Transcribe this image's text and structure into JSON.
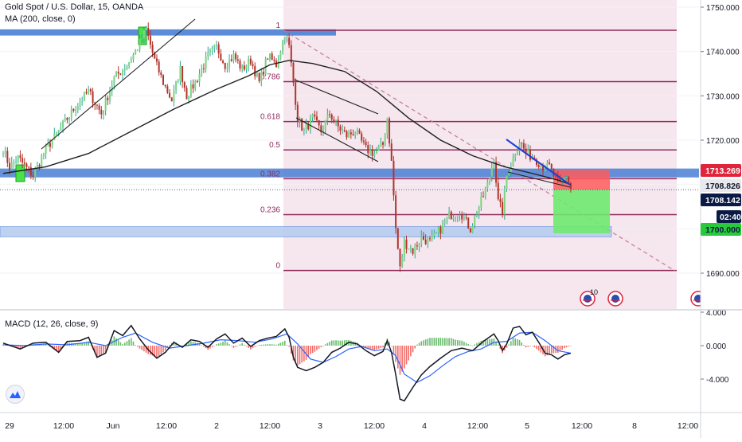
{
  "colors": {
    "candle_up": "#26a69a",
    "candle_up_fill": "#7ed37f",
    "candle_down": "#b0342c",
    "ma_line": "#1f1f1f",
    "fib_line": "#8e2a5c",
    "fib_text": "#8e2a5c",
    "fib_bg": "#f6e6ee",
    "zone_blue": "#4a7fd4",
    "zone_blue_light": "#b7cdf0",
    "trend_blue": "#1e3fd6",
    "dashed_trend": "#c07a96",
    "stop_red": "#ff5a5a",
    "target_green": "#6ee96e",
    "macd_line": "#2962ff",
    "signal_line": "#131722",
    "hist_up": "#4caf50",
    "hist_down": "#ef5350",
    "price_red_tag": "#e0243b",
    "price_navy_tag": "#0b1a44",
    "price_green_tag": "#28c93a",
    "price_gray_tag": "#e7e9ee"
  },
  "legend": {
    "symbol": "Gold Spot / U.S. Dollar, 15, OANDA",
    "ma": "MA (200, close, 0)",
    "macd": "MACD (12, 26, close, 9)"
  },
  "chart_data": [
    {
      "type": "candlestick",
      "title": "Gold Spot / U.S. Dollar, 15, OANDA",
      "ylim": [
        1688,
        1752
      ],
      "y_ticks": [
        1690,
        1700,
        1710,
        1720,
        1730,
        1740,
        1750
      ],
      "y_tick_labels": [
        "1690.000",
        "1700.000",
        "1710.000",
        "1720.000",
        "1730.000",
        "1740.000",
        "1750.000"
      ],
      "x_ticks": [
        "29",
        "12:00",
        "Jun",
        "12:00",
        "2",
        "12:00",
        "3",
        "12:00",
        "4",
        "12:00",
        "5",
        "12:00",
        "8",
        "12:00"
      ],
      "anchors": [
        [
          0,
          1718.0
        ],
        [
          3,
          1714.0
        ],
        [
          7,
          1716.0
        ],
        [
          14,
          1712.0
        ],
        [
          20,
          1718.0
        ],
        [
          26,
          1722.0
        ],
        [
          33,
          1727.0
        ],
        [
          40,
          1731.0
        ],
        [
          46,
          1726.0
        ],
        [
          52,
          1734.0
        ],
        [
          58,
          1737.0
        ],
        [
          62,
          1740.0
        ],
        [
          67,
          1745.0
        ],
        [
          71,
          1738.0
        ],
        [
          75,
          1733.0
        ],
        [
          79,
          1729.0
        ],
        [
          83,
          1736.0
        ],
        [
          86,
          1730.0
        ],
        [
          90,
          1733.0
        ],
        [
          96,
          1739.0
        ],
        [
          100,
          1741.0
        ],
        [
          104,
          1737.0
        ],
        [
          108,
          1739.0
        ],
        [
          112,
          1736.0
        ],
        [
          116,
          1738.0
        ],
        [
          120,
          1733.0
        ],
        [
          124,
          1739.0
        ],
        [
          128,
          1737.0
        ],
        [
          132,
          1744.0
        ],
        [
          134,
          1741.0
        ],
        [
          136,
          1733.0
        ],
        [
          138,
          1725.0
        ],
        [
          141,
          1722.0
        ],
        [
          145,
          1725.0
        ],
        [
          149,
          1722.0
        ],
        [
          153,
          1726.0
        ],
        [
          157,
          1723.0
        ],
        [
          161,
          1721.0
        ],
        [
          165,
          1722.0
        ],
        [
          170,
          1718.0
        ],
        [
          174,
          1717.0
        ],
        [
          178,
          1719.0
        ],
        [
          180,
          1725.0
        ],
        [
          182,
          1715.0
        ],
        [
          184,
          1700.0
        ],
        [
          186,
          1691.0
        ],
        [
          188,
          1697.0
        ],
        [
          192,
          1695.0
        ],
        [
          196,
          1698.0
        ],
        [
          200,
          1697.0
        ],
        [
          205,
          1700.0
        ],
        [
          209,
          1703.0
        ],
        [
          214,
          1704.0
        ],
        [
          219,
          1700.0
        ],
        [
          223,
          1705.0
        ],
        [
          227,
          1710.0
        ],
        [
          230,
          1716.0
        ],
        [
          232,
          1706.0
        ],
        [
          234,
          1704.0
        ],
        [
          236,
          1712.0
        ],
        [
          239,
          1716.0
        ],
        [
          242,
          1720.0
        ],
        [
          245,
          1717.0
        ],
        [
          249,
          1716.0
        ],
        [
          253,
          1714.0
        ],
        [
          256,
          1714.0
        ],
        [
          259,
          1711.0
        ],
        [
          261,
          1710.0
        ],
        [
          264,
          1712.0
        ],
        [
          266,
          1709.0
        ]
      ],
      "ma_200": [
        [
          0,
          1712.5
        ],
        [
          20,
          1714.0
        ],
        [
          40,
          1717.0
        ],
        [
          60,
          1722.0
        ],
        [
          80,
          1727.0
        ],
        [
          100,
          1731.5
        ],
        [
          115,
          1734.5
        ],
        [
          125,
          1737.0
        ],
        [
          134,
          1738.0
        ],
        [
          145,
          1737.3
        ],
        [
          160,
          1735.5
        ],
        [
          175,
          1731.0
        ],
        [
          190,
          1725.0
        ],
        [
          205,
          1720.0
        ],
        [
          220,
          1716.5
        ],
        [
          235,
          1714.0
        ],
        [
          248,
          1712.5
        ],
        [
          260,
          1711.0
        ],
        [
          266,
          1710.0
        ]
      ],
      "fibonacci": {
        "levels": [
          {
            "label": "1",
            "price": 1744.8
          },
          {
            "label": "0.786",
            "price": 1733.2
          },
          {
            "label": "0.618",
            "price": 1724.2
          },
          {
            "label": "0.5",
            "price": 1717.8
          },
          {
            "label": "0.382",
            "price": 1711.3
          },
          {
            "label": "0.236",
            "price": 1703.2
          },
          {
            "label": "0",
            "price": 1690.6
          }
        ]
      },
      "zones": {
        "top_resistance": [
          1743.6,
          1745.0
        ],
        "mid_support": [
          1711.6,
          1713.6
        ],
        "lower_zone": [
          1698.2,
          1700.5
        ]
      },
      "position": {
        "entry": 1708.826,
        "stop": 1713.269,
        "target": 1699.0
      },
      "price_tags": [
        {
          "value": "1713.269",
          "kind": "red"
        },
        {
          "value": "1708.826",
          "kind": "gray"
        },
        {
          "value": "1708.142",
          "kind": "navy"
        },
        {
          "value": "02:40",
          "kind": "navy"
        },
        {
          "value": "1700.000",
          "kind": "green"
        }
      ],
      "events": [
        {
          "count": "10"
        }
      ]
    },
    {
      "type": "line",
      "title": "MACD (12, 26, close, 9)",
      "ylim": [
        -6.5,
        5.5
      ],
      "y_ticks": [
        4,
        0,
        -4
      ],
      "y_tick_labels": [
        "4.000",
        "0.000",
        "-4.000"
      ],
      "macd_line": [
        [
          0,
          0.3
        ],
        [
          8,
          -0.4
        ],
        [
          14,
          0.3
        ],
        [
          20,
          0.4
        ],
        [
          26,
          -0.8
        ],
        [
          30,
          0.5
        ],
        [
          36,
          0.6
        ],
        [
          40,
          1.0
        ],
        [
          44,
          -1.4
        ],
        [
          48,
          -0.9
        ],
        [
          52,
          1.8
        ],
        [
          56,
          1.2
        ],
        [
          60,
          2.4
        ],
        [
          64,
          0.8
        ],
        [
          68,
          -0.5
        ],
        [
          72,
          -1.5
        ],
        [
          76,
          -0.8
        ],
        [
          80,
          0.4
        ],
        [
          84,
          -0.2
        ],
        [
          88,
          0.7
        ],
        [
          92,
          0.5
        ],
        [
          96,
          -0.2
        ],
        [
          100,
          0.8
        ],
        [
          104,
          1.4
        ],
        [
          108,
          0.3
        ],
        [
          112,
          0.9
        ],
        [
          116,
          -0.1
        ],
        [
          120,
          0.6
        ],
        [
          124,
          0.9
        ],
        [
          128,
          1.1
        ],
        [
          132,
          2.0
        ],
        [
          134,
          1.0
        ],
        [
          136,
          -1.4
        ],
        [
          138,
          -2.6
        ],
        [
          142,
          -3.0
        ],
        [
          146,
          -2.6
        ],
        [
          150,
          -2.0
        ],
        [
          154,
          -0.8
        ],
        [
          158,
          -0.3
        ],
        [
          162,
          0.4
        ],
        [
          166,
          0.2
        ],
        [
          170,
          -0.6
        ],
        [
          174,
          -1.2
        ],
        [
          178,
          -0.7
        ],
        [
          180,
          0.6
        ],
        [
          182,
          -0.8
        ],
        [
          184,
          -3.5
        ],
        [
          186,
          -6.4
        ],
        [
          188,
          -6.6
        ],
        [
          192,
          -5.0
        ],
        [
          196,
          -3.5
        ],
        [
          200,
          -2.5
        ],
        [
          205,
          -1.5
        ],
        [
          210,
          -0.6
        ],
        [
          215,
          -0.3
        ],
        [
          220,
          -0.6
        ],
        [
          225,
          0.5
        ],
        [
          230,
          1.4
        ],
        [
          232,
          0.6
        ],
        [
          234,
          -0.6
        ],
        [
          236,
          0.2
        ],
        [
          239,
          2.1
        ],
        [
          242,
          2.3
        ],
        [
          245,
          1.3
        ],
        [
          248,
          1.6
        ],
        [
          251,
          0.4
        ],
        [
          254,
          -0.9
        ],
        [
          257,
          -1.1
        ],
        [
          260,
          -1.6
        ],
        [
          263,
          -1.1
        ],
        [
          266,
          -0.9
        ]
      ],
      "signal_line": [
        [
          0,
          0.1
        ],
        [
          10,
          0.0
        ],
        [
          20,
          0.2
        ],
        [
          30,
          0.1
        ],
        [
          40,
          0.4
        ],
        [
          48,
          0.0
        ],
        [
          56,
          1.0
        ],
        [
          62,
          1.5
        ],
        [
          70,
          0.4
        ],
        [
          78,
          -0.3
        ],
        [
          86,
          0.0
        ],
        [
          94,
          0.3
        ],
        [
          102,
          0.7
        ],
        [
          110,
          0.6
        ],
        [
          118,
          0.4
        ],
        [
          126,
          0.8
        ],
        [
          133,
          1.4
        ],
        [
          138,
          0.2
        ],
        [
          144,
          -1.6
        ],
        [
          150,
          -2.0
        ],
        [
          156,
          -1.3
        ],
        [
          162,
          -0.4
        ],
        [
          168,
          -0.1
        ],
        [
          174,
          -0.6
        ],
        [
          180,
          -0.4
        ],
        [
          184,
          -1.2
        ],
        [
          188,
          -3.4
        ],
        [
          194,
          -4.4
        ],
        [
          200,
          -3.6
        ],
        [
          206,
          -2.4
        ],
        [
          212,
          -1.3
        ],
        [
          218,
          -0.7
        ],
        [
          224,
          -0.4
        ],
        [
          230,
          0.4
        ],
        [
          236,
          0.5
        ],
        [
          242,
          1.5
        ],
        [
          248,
          1.6
        ],
        [
          254,
          0.6
        ],
        [
          260,
          -0.6
        ],
        [
          266,
          -0.9
        ]
      ]
    }
  ]
}
